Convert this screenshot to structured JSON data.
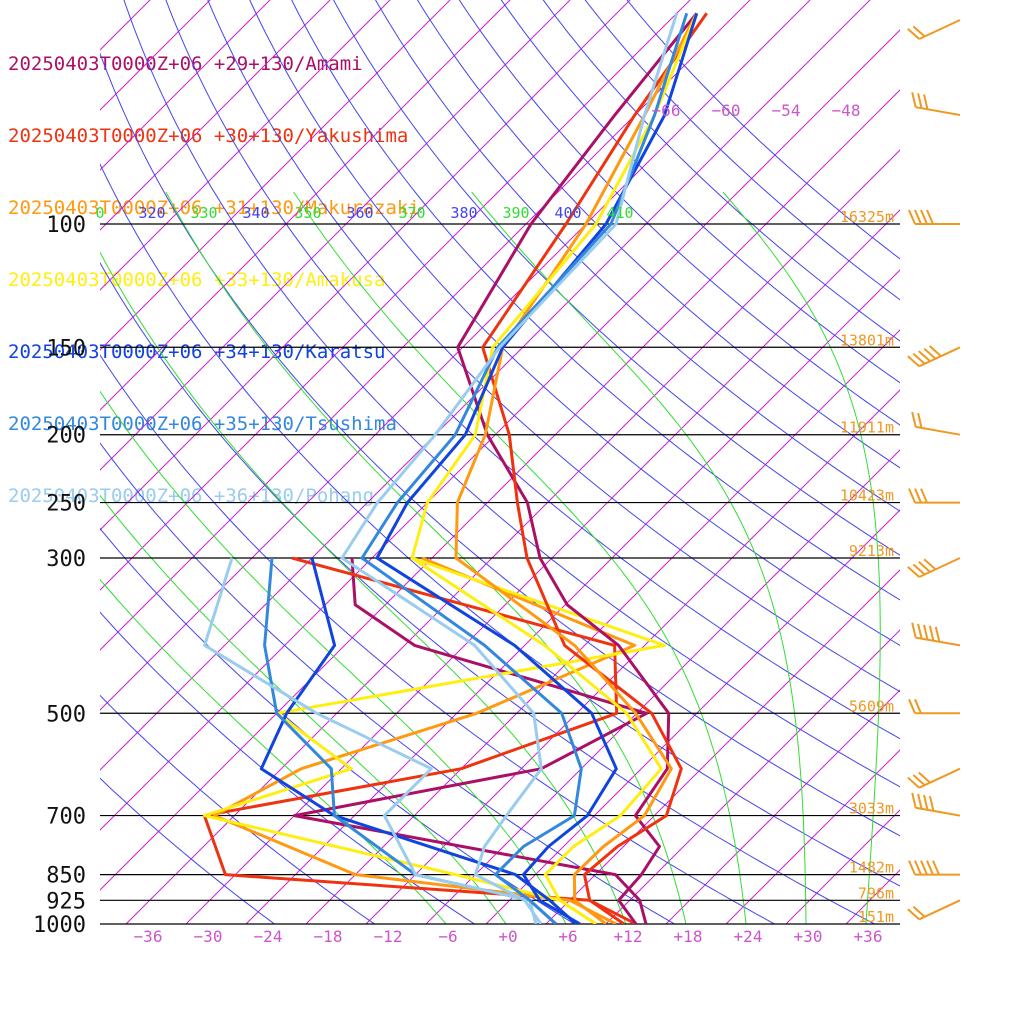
{
  "chart_data": {
    "type": "line",
    "title": "",
    "xlabel": "",
    "ylabel": "",
    "x_unit": "temperature (°C)",
    "y_unit": "pressure (hPa)",
    "y_scale": "log",
    "xlim": [
      -40,
      40
    ],
    "ylim": [
      1000,
      50
    ],
    "pressure_levels": [
      100,
      150,
      200,
      250,
      300,
      500,
      700,
      850,
      925,
      1000
    ],
    "pressure_labels": [
      "100",
      "150",
      "200",
      "250",
      "300",
      "500",
      "700",
      "850",
      "925",
      "1000"
    ],
    "height_labels": [
      "16325m",
      "13801m",
      "11911m",
      "10423m",
      "9213m",
      "5609m",
      "3033m",
      "1482m",
      "796m",
      "151m"
    ],
    "x_ticks": [
      -36,
      -30,
      -24,
      -18,
      -12,
      -6,
      0,
      6,
      12,
      18,
      24,
      30,
      36
    ],
    "x_tick_labels": [
      "−36",
      "−30",
      "−24",
      "−18",
      "−12",
      "−6",
      "+0",
      "+6",
      "+12",
      "+18",
      "+24",
      "+30",
      "+36"
    ],
    "upper_temp_labels": [
      "−66",
      "−60",
      "−54",
      "−48"
    ],
    "theta_labels": [
      "0",
      "320",
      "330",
      "340",
      "350",
      "360",
      "370",
      "380",
      "390",
      "400",
      "410"
    ],
    "colors": {
      "isotherm": "#cc22cc",
      "dry_adiabat": "#4444ee",
      "moist_adiabat": "#33dd33",
      "isobar": "#000000",
      "height_label": "#ee9922",
      "tick_label": "#cc55cc",
      "wind_barb": "#ee9922",
      "theta_label_a": "#4444ee",
      "theta_label_b": "#33dd33"
    },
    "wind_barb_levels": [
      50,
      70,
      100,
      150,
      200,
      250,
      300,
      400,
      500,
      600,
      700,
      850,
      925
    ],
    "series": [
      {
        "name": "20250403T0000Z+06 +29+130/Amami",
        "color": "#aa1166",
        "temperature": [
          [
            50,
            -72
          ],
          [
            70,
            -70
          ],
          [
            100,
            -67.5
          ],
          [
            150,
            -62.5
          ],
          [
            200,
            -50.8
          ],
          [
            250,
            -40
          ],
          [
            300,
            -33.2
          ],
          [
            350,
            -25.8
          ],
          [
            400,
            -16.6
          ],
          [
            500,
            -4.8
          ],
          [
            600,
            0.6
          ],
          [
            700,
            2.1
          ],
          [
            775,
            7.6
          ],
          [
            850,
            8.6
          ],
          [
            925,
            8.9
          ],
          [
            1000,
            13
          ]
        ],
        "dewpoint": [
          [
            300,
            -52
          ],
          [
            350,
            -47
          ],
          [
            400,
            -37
          ],
          [
            500,
            -7
          ],
          [
            600,
            -12
          ],
          [
            700,
            -32
          ],
          [
            850,
            6
          ],
          [
            925,
            11
          ],
          [
            1000,
            14
          ]
        ]
      },
      {
        "name": "20250403T0000Z+06 +30+130/Yakushima",
        "color": "#ee3311",
        "temperature": [
          [
            50,
            -71
          ],
          [
            70,
            -68
          ],
          [
            100,
            -64
          ],
          [
            150,
            -60
          ],
          [
            200,
            -48.6
          ],
          [
            250,
            -41
          ],
          [
            300,
            -34.5
          ],
          [
            400,
            -22
          ],
          [
            500,
            -6.5
          ],
          [
            600,
            2
          ],
          [
            700,
            5.2
          ],
          [
            775,
            3.4
          ],
          [
            850,
            2.9
          ],
          [
            925,
            6
          ],
          [
            1000,
            11.8
          ]
        ],
        "dewpoint": [
          [
            300,
            -58
          ],
          [
            400,
            -17
          ],
          [
            500,
            -10
          ],
          [
            600,
            -20
          ],
          [
            700,
            -41
          ],
          [
            850,
            -33
          ],
          [
            925,
            6
          ],
          [
            1000,
            13
          ]
        ]
      },
      {
        "name": "20250403T0000Z+06 +31+130/Makurazaki",
        "color": "#ff9911",
        "temperature": [
          [
            50,
            -72
          ],
          [
            70,
            -67
          ],
          [
            100,
            -62
          ],
          [
            150,
            -58
          ],
          [
            200,
            -51
          ],
          [
            250,
            -47
          ],
          [
            300,
            -41.6
          ],
          [
            400,
            -21
          ],
          [
            500,
            -8.1
          ],
          [
            600,
            1
          ],
          [
            700,
            3
          ],
          [
            775,
            2
          ],
          [
            850,
            1.9
          ],
          [
            925,
            4.5
          ],
          [
            1000,
            10
          ]
        ],
        "dewpoint": [
          [
            300,
            -45
          ],
          [
            400,
            -15
          ],
          [
            500,
            -24
          ],
          [
            600,
            -36
          ],
          [
            700,
            -40
          ],
          [
            850,
            -20
          ],
          [
            925,
            4
          ],
          [
            1000,
            11
          ]
        ]
      },
      {
        "name": "20250403T0000Z+06 +33+130/Amakusa",
        "color": "#ffee11",
        "temperature": [
          [
            50,
            -72
          ],
          [
            70,
            -66
          ],
          [
            100,
            -61
          ],
          [
            150,
            -59
          ],
          [
            200,
            -52
          ],
          [
            250,
            -50
          ],
          [
            300,
            -46
          ],
          [
            400,
            -24
          ],
          [
            500,
            -9
          ],
          [
            600,
            0
          ],
          [
            700,
            0.6
          ],
          [
            775,
            -1
          ],
          [
            850,
            -1
          ],
          [
            925,
            3
          ],
          [
            1000,
            9
          ]
        ],
        "dewpoint": [
          [
            300,
            -46
          ],
          [
            400,
            -12
          ],
          [
            500,
            -44
          ],
          [
            600,
            -31
          ],
          [
            700,
            -41
          ],
          [
            850,
            -10
          ],
          [
            925,
            3
          ],
          [
            1000,
            9
          ]
        ]
      },
      {
        "name": "20250403T0000Z+06 +34+130/Karatsu",
        "color": "#1144dd",
        "temperature": [
          [
            50,
            -72
          ],
          [
            70,
            -65
          ],
          [
            100,
            -60
          ],
          [
            150,
            -58
          ],
          [
            200,
            -53
          ],
          [
            250,
            -52
          ],
          [
            300,
            -49.5
          ],
          [
            400,
            -27
          ],
          [
            500,
            -12.5
          ],
          [
            600,
            -4.5
          ],
          [
            700,
            -2.7
          ],
          [
            775,
            -3.5
          ],
          [
            850,
            -3.2
          ],
          [
            925,
            1
          ],
          [
            1000,
            7.4
          ]
        ],
        "dewpoint": [
          [
            300,
            -56
          ],
          [
            400,
            -45
          ],
          [
            500,
            -43
          ],
          [
            600,
            -40
          ],
          [
            700,
            -28
          ],
          [
            850,
            -4
          ],
          [
            925,
            2
          ],
          [
            1000,
            7
          ]
        ]
      },
      {
        "name": "20250403T0000Z+06 +35+130/Tsushima",
        "color": "#3388dd",
        "temperature": [
          [
            50,
            -73
          ],
          [
            70,
            -66
          ],
          [
            100,
            -59.5
          ],
          [
            150,
            -58.5
          ],
          [
            200,
            -54
          ],
          [
            250,
            -53
          ],
          [
            300,
            -51
          ],
          [
            400,
            -30
          ],
          [
            500,
            -15.5
          ],
          [
            600,
            -8
          ],
          [
            700,
            -4
          ],
          [
            775,
            -6
          ],
          [
            850,
            -6
          ],
          [
            925,
            0
          ],
          [
            1000,
            5
          ]
        ],
        "dewpoint": [
          [
            300,
            -60
          ],
          [
            400,
            -52
          ],
          [
            500,
            -44
          ],
          [
            600,
            -33
          ],
          [
            700,
            -28
          ],
          [
            850,
            -14
          ],
          [
            925,
            0
          ],
          [
            1000,
            5
          ]
        ]
      },
      {
        "name": "20250403T0000Z+06 +36+130/Pohang",
        "color": "#99ccee",
        "temperature": [
          [
            50,
            -74
          ],
          [
            70,
            -67
          ],
          [
            100,
            -59
          ],
          [
            150,
            -58.3
          ],
          [
            200,
            -56
          ],
          [
            250,
            -55
          ],
          [
            300,
            -53
          ],
          [
            400,
            -31
          ],
          [
            500,
            -18.3
          ],
          [
            600,
            -12
          ],
          [
            700,
            -10.8
          ],
          [
            775,
            -9.9
          ],
          [
            850,
            -8
          ],
          [
            925,
            -0.5
          ],
          [
            1000,
            3.5
          ]
        ],
        "dewpoint": [
          [
            300,
            -64
          ],
          [
            400,
            -58
          ],
          [
            500,
            -40
          ],
          [
            600,
            -23
          ],
          [
            700,
            -23
          ],
          [
            850,
            -14
          ],
          [
            925,
            0
          ],
          [
            1000,
            3
          ]
        ]
      }
    ]
  }
}
